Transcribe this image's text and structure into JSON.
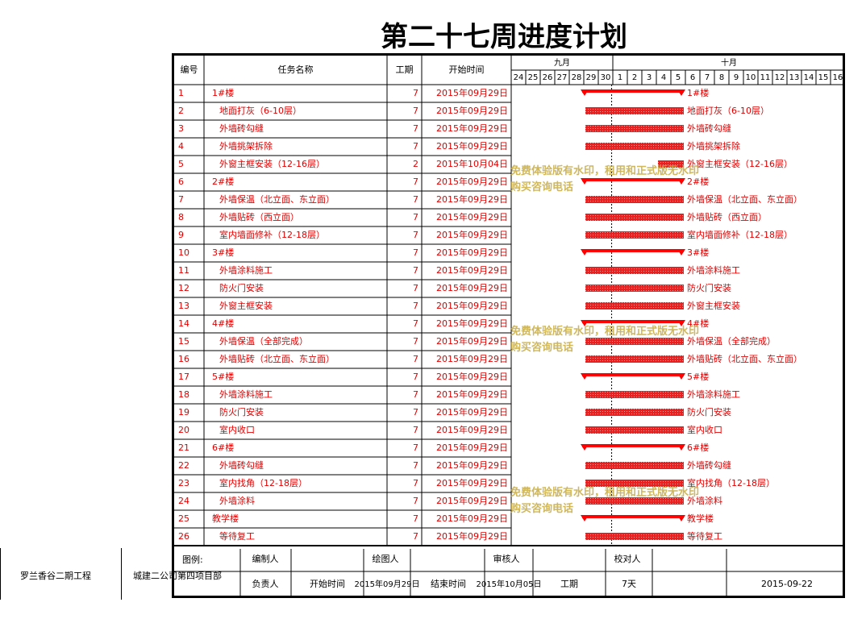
{
  "title": "第二十七周进度计划",
  "headers": {
    "id": "编号",
    "task": "任务名称",
    "duration": "工期",
    "start": "开始时间"
  },
  "months": [
    {
      "label": "九月",
      "start_day": 24,
      "end_day": 30
    },
    {
      "label": "十月",
      "start_day": 1,
      "end_day": 16
    }
  ],
  "day_ticks": [
    "24",
    "25",
    "26",
    "27",
    "28",
    "29",
    "30",
    "1",
    "2",
    "3",
    "4",
    "5",
    "6",
    "7",
    "8",
    "9",
    "10",
    "11",
    "12",
    "13",
    "14",
    "15",
    "16"
  ],
  "chart_data": {
    "type": "gantt",
    "time_axis": {
      "start": "2015-09-24",
      "end": "2015-10-16",
      "unit": "day"
    },
    "tasks": [
      {
        "id": "1",
        "name": "1#楼",
        "duration": "7",
        "start": "2015年09月29日",
        "summary": true
      },
      {
        "id": "2",
        "name": "地面打灰（6-10层）",
        "duration": "7",
        "start": "2015年09月29日",
        "summary": false
      },
      {
        "id": "3",
        "name": "外墙砖勾缝",
        "duration": "7",
        "start": "2015年09月29日",
        "summary": false
      },
      {
        "id": "4",
        "name": "外墙挑架拆除",
        "duration": "7",
        "start": "2015年09月29日",
        "summary": false
      },
      {
        "id": "5",
        "name": "外窗主框安装（12-16层）",
        "duration": "2",
        "start": "2015年10月04日",
        "summary": false
      },
      {
        "id": "6",
        "name": "2#楼",
        "duration": "7",
        "start": "2015年09月29日",
        "summary": true
      },
      {
        "id": "7",
        "name": "外墙保温（北立面、东立面）",
        "duration": "7",
        "start": "2015年09月29日",
        "summary": false
      },
      {
        "id": "8",
        "name": "外墙贴砖（西立面）",
        "duration": "7",
        "start": "2015年09月29日",
        "summary": false
      },
      {
        "id": "9",
        "name": "室内墙面修补（12-18层）",
        "duration": "7",
        "start": "2015年09月29日",
        "summary": false
      },
      {
        "id": "10",
        "name": "3#楼",
        "duration": "7",
        "start": "2015年09月29日",
        "summary": true
      },
      {
        "id": "11",
        "name": "外墙涂料施工",
        "duration": "7",
        "start": "2015年09月29日",
        "summary": false
      },
      {
        "id": "12",
        "name": "防火门安装",
        "duration": "7",
        "start": "2015年09月29日",
        "summary": false
      },
      {
        "id": "13",
        "name": "外窗主框安装",
        "duration": "7",
        "start": "2015年09月29日",
        "summary": false
      },
      {
        "id": "14",
        "name": "4#楼",
        "duration": "7",
        "start": "2015年09月29日",
        "summary": true
      },
      {
        "id": "15",
        "name": "外墙保温（全部完成）",
        "duration": "7",
        "start": "2015年09月29日",
        "summary": false
      },
      {
        "id": "16",
        "name": "外墙贴砖（北立面、东立面）",
        "duration": "7",
        "start": "2015年09月29日",
        "summary": false
      },
      {
        "id": "17",
        "name": "5#楼",
        "duration": "7",
        "start": "2015年09月29日",
        "summary": true
      },
      {
        "id": "18",
        "name": "外墙涂料施工",
        "duration": "7",
        "start": "2015年09月29日",
        "summary": false
      },
      {
        "id": "19",
        "name": "防火门安装",
        "duration": "7",
        "start": "2015年09月29日",
        "summary": false
      },
      {
        "id": "20",
        "name": "室内收口",
        "duration": "7",
        "start": "2015年09月29日",
        "summary": false
      },
      {
        "id": "21",
        "name": "6#楼",
        "duration": "7",
        "start": "2015年09月29日",
        "summary": true
      },
      {
        "id": "22",
        "name": "外墙砖勾缝",
        "duration": "7",
        "start": "2015年09月29日",
        "summary": false
      },
      {
        "id": "23",
        "name": "室内找角（12-18层）",
        "duration": "7",
        "start": "2015年09月29日",
        "summary": false
      },
      {
        "id": "24",
        "name": "外墙涂料",
        "duration": "7",
        "start": "2015年09月29日",
        "summary": false
      },
      {
        "id": "25",
        "name": "教学楼",
        "duration": "7",
        "start": "2015年09月29日",
        "summary": true
      },
      {
        "id": "26",
        "name": "等待复工",
        "duration": "7",
        "start": "2015年09月29日",
        "summary": false
      }
    ],
    "colors": {
      "bar": "#ff0000",
      "text": "#e00000",
      "grid": "#000000"
    }
  },
  "footer": {
    "project": "罗兰香谷二期工程",
    "company": "城建二公司第四项目部",
    "legend_label": "图例:",
    "editor_label": "编制人",
    "drawer_label": "绘图人",
    "reviewer_label": "审核人",
    "proofer_label": "校对人",
    "owner_label": "负责人",
    "start_label": "开始时间",
    "start_value": "2015年09月29日",
    "end_label": "结束时间",
    "end_value": "2015年10月05日",
    "duration_label": "工期",
    "duration_value": "7天",
    "date_value": "2015-09-22"
  },
  "watermark": {
    "line1": "免费体验版有水印，租用和正式版无水印",
    "line2": "购买咨询电话"
  }
}
